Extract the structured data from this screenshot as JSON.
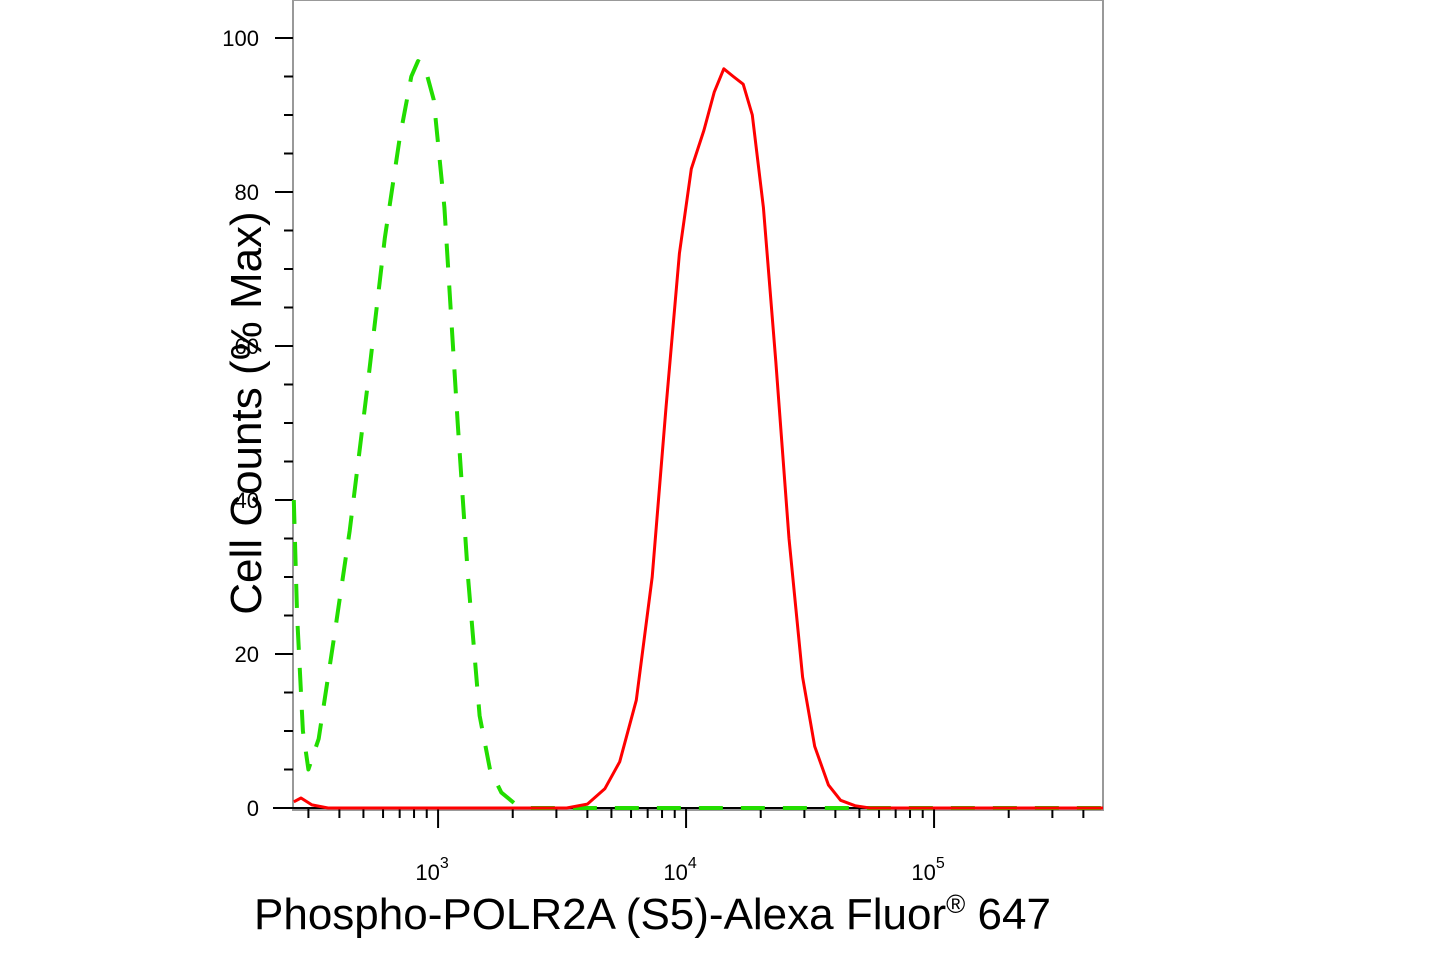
{
  "chart_data": {
    "type": "line",
    "title": "",
    "xlabel": {
      "main": "Phospho-POLR2A (S5)-Alexa Fluor",
      "superscript": "®",
      "suffix": " 647"
    },
    "ylabel": "Cell Counts (% Max)",
    "x_scale": "log",
    "xlim": [
      260,
      480000
    ],
    "ylim": [
      0,
      105
    ],
    "x_ticks": [
      {
        "value": 1000,
        "base": "10",
        "exp": "3"
      },
      {
        "value": 10000,
        "base": "10",
        "exp": "4"
      },
      {
        "value": 100000,
        "base": "10",
        "exp": "5"
      }
    ],
    "y_ticks": [
      0,
      20,
      40,
      60,
      80,
      100
    ],
    "y_tick_labels": [
      "0",
      "20",
      "40",
      "60",
      "80",
      "100"
    ],
    "grid": false,
    "legend": "none",
    "series": [
      {
        "style": "dashed",
        "color": "#22dd00",
        "points": [
          [
            262,
            40
          ],
          [
            270,
            25
          ],
          [
            285,
            10
          ],
          [
            300,
            5
          ],
          [
            330,
            9
          ],
          [
            380,
            22
          ],
          [
            440,
            36
          ],
          [
            520,
            55
          ],
          [
            610,
            74
          ],
          [
            700,
            87
          ],
          [
            780,
            95
          ],
          [
            830,
            97
          ],
          [
            880,
            96.5
          ],
          [
            960,
            92
          ],
          [
            1060,
            78
          ],
          [
            1200,
            50
          ],
          [
            1320,
            30
          ],
          [
            1470,
            12
          ],
          [
            1620,
            5
          ],
          [
            1800,
            2
          ],
          [
            2050,
            0.5
          ],
          [
            2300,
            0
          ],
          [
            480000,
            0
          ]
        ]
      },
      {
        "style": "solid",
        "color": "#ff0000",
        "points": [
          [
            262,
            0.8
          ],
          [
            280,
            1.3
          ],
          [
            310,
            0.4
          ],
          [
            360,
            0
          ],
          [
            3300,
            0
          ],
          [
            4000,
            0.5
          ],
          [
            4700,
            2.5
          ],
          [
            5400,
            6
          ],
          [
            6300,
            14
          ],
          [
            7300,
            30
          ],
          [
            8300,
            52
          ],
          [
            9400,
            72
          ],
          [
            10500,
            83
          ],
          [
            11800,
            88
          ],
          [
            13000,
            93
          ],
          [
            14200,
            96
          ],
          [
            15500,
            95
          ],
          [
            17000,
            94
          ],
          [
            18500,
            90
          ],
          [
            20500,
            78
          ],
          [
            23000,
            58
          ],
          [
            26000,
            35
          ],
          [
            29500,
            17
          ],
          [
            33000,
            8
          ],
          [
            37500,
            3
          ],
          [
            42000,
            1
          ],
          [
            48000,
            0.3
          ],
          [
            55000,
            0
          ],
          [
            480000,
            0
          ]
        ]
      }
    ]
  }
}
